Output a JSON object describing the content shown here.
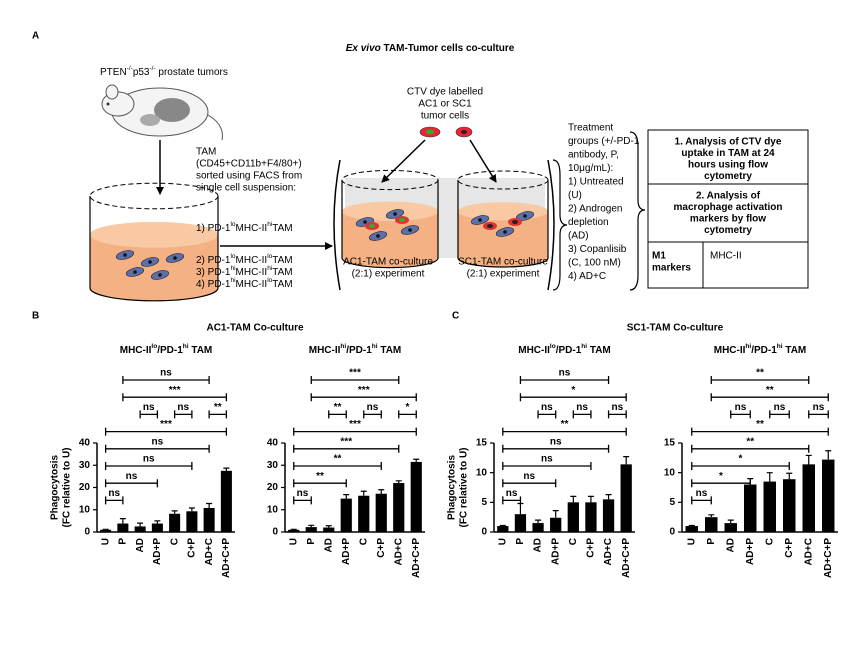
{
  "panel_labels": [
    "A",
    "B",
    "C"
  ],
  "title": [
    "Ex vivo",
    " TAM-Tumor cells co-culture"
  ],
  "tumor_label": [
    "PTEN",
    "-/-",
    "p53",
    "-/-",
    " prostate tumors"
  ],
  "tam_text": [
    "TAM",
    "(CD45+CD11b+F4/80+)",
    "sorted using FACS from",
    "single cell suspension:"
  ],
  "tam_populations": [
    [
      "1)  PD-1",
      "lo",
      "MHC-II",
      "hi",
      "TAM"
    ],
    [
      "2)  PD-1",
      "lo",
      "MHC-II",
      "lo",
      "TAM"
    ],
    [
      "3)  PD-1",
      "hi",
      "MHC-II",
      "hi",
      "TAM"
    ],
    [
      "4)  PD-1",
      "hi",
      "MHC-II",
      "lo",
      "TAM"
    ]
  ],
  "dye_label": [
    "CTV dye labelled",
    "AC1 or SC1",
    "tumor cells"
  ],
  "cocultures": [
    [
      "AC1-TAM co-culture",
      "(2:1) experiment"
    ],
    [
      "SC1-TAM co-culture",
      "(2:1) experiment"
    ]
  ],
  "treatment": [
    "Treatment",
    "groups (+/-PD-1",
    "antibody, P,",
    "10μg/mL):",
    "1)  Untreated",
    "     (U)",
    "2)  Androgen",
    "     depletion",
    "     (AD)",
    "3)  Copanlisib",
    "     (C, 100 nM)",
    "4)  AD+C"
  ],
  "analysis": {
    "box1": [
      "1. Analysis of CTV dye",
      "uptake in TAM at 24",
      "hours using flow",
      "cytometry"
    ],
    "box2": [
      "2. Analysis of",
      "macrophage activation",
      "markers by flow",
      "cytometry"
    ],
    "m1_label": [
      "M1",
      "markers"
    ],
    "m1_value": "MHC-II"
  },
  "panel_titles": [
    "AC1-TAM Co-culture",
    "SC1-TAM Co-culture"
  ],
  "chart_data": [
    {
      "type": "bar",
      "subtitle": [
        "MHC-II",
        "lo",
        "/PD-1",
        "hi",
        " TAM"
      ],
      "ylabel": [
        "Phagocytosis",
        "(FC relative to U)"
      ],
      "categories": [
        "U",
        "P",
        "AD",
        "AD+P",
        "C",
        "C+P",
        "AD+C",
        "AD+C+P"
      ],
      "values": [
        1,
        3.8,
        2.5,
        3.8,
        8.2,
        9.3,
        10.8,
        27.5
      ],
      "errors": [
        0.2,
        2.2,
        1.5,
        1.2,
        1.3,
        1.5,
        2,
        1.2
      ],
      "color": "#000000",
      "ylim": [
        0,
        40
      ],
      "yticks": [
        0,
        10,
        20,
        30,
        40
      ],
      "brackets": [
        [
          {
            "pair": [
              "P",
              "AD+C"
            ],
            "label": "ns"
          }
        ],
        [
          {
            "pair": [
              "P",
              "AD+C+P"
            ],
            "label": "***"
          }
        ],
        [
          {
            "pair": [
              "AD",
              "AD+P"
            ],
            "label": "ns"
          },
          {
            "pair": [
              "C",
              "C+P"
            ],
            "label": "ns"
          },
          {
            "pair": [
              "AD+C",
              "AD+C+P"
            ],
            "label": "**"
          }
        ],
        [
          {
            "pair": [
              "U",
              "AD+C+P"
            ],
            "label": "***"
          }
        ],
        [
          {
            "pair": [
              "U",
              "AD+C"
            ],
            "label": "ns"
          }
        ],
        [
          {
            "pair": [
              "U",
              "C+P"
            ],
            "label": "ns"
          }
        ],
        [
          {
            "pair": [
              "U",
              "AD+P"
            ],
            "label": "ns"
          }
        ],
        [
          {
            "pair": [
              "U",
              "P"
            ],
            "label": "ns"
          }
        ]
      ]
    },
    {
      "type": "bar",
      "subtitle": [
        "MHC-II",
        "hi",
        "/PD-1",
        "hi",
        " TAM"
      ],
      "categories": [
        "U",
        "P",
        "AD",
        "AD+P",
        "C",
        "C+P",
        "AD+C",
        "AD+C+P"
      ],
      "values": [
        1,
        2.2,
        2,
        15,
        16.3,
        17.2,
        22,
        31.5
      ],
      "errors": [
        0.2,
        0.8,
        0.8,
        1.8,
        2,
        1.8,
        1,
        1.2
      ],
      "color": "#000000",
      "ylim": [
        0,
        40
      ],
      "yticks": [
        0,
        10,
        20,
        30,
        40
      ],
      "brackets": [
        [
          {
            "pair": [
              "P",
              "AD+C"
            ],
            "label": "***"
          }
        ],
        [
          {
            "pair": [
              "P",
              "AD+C+P"
            ],
            "label": "***"
          }
        ],
        [
          {
            "pair": [
              "AD",
              "AD+P"
            ],
            "label": "**"
          },
          {
            "pair": [
              "C",
              "C+P"
            ],
            "label": "ns"
          },
          {
            "pair": [
              "AD+C",
              "AD+C+P"
            ],
            "label": "*"
          }
        ],
        [
          {
            "pair": [
              "U",
              "AD+C+P"
            ],
            "label": "***"
          }
        ],
        [
          {
            "pair": [
              "U",
              "AD+C"
            ],
            "label": "***"
          }
        ],
        [
          {
            "pair": [
              "U",
              "C+P"
            ],
            "label": "**"
          }
        ],
        [
          {
            "pair": [
              "U",
              "AD+P"
            ],
            "label": "**"
          }
        ],
        [
          {
            "pair": [
              "U",
              "P"
            ],
            "label": "ns"
          }
        ]
      ]
    },
    {
      "type": "bar",
      "subtitle": [
        "MHC-II",
        "lo",
        "/PD-1",
        "hi",
        " TAM"
      ],
      "ylabel": [
        "Phagocytosis",
        "(FC relative to U)"
      ],
      "categories": [
        "U",
        "P",
        "AD",
        "AD+P",
        "C",
        "C+P",
        "AD+C",
        "AD+C+P"
      ],
      "values": [
        1,
        3,
        1.5,
        2.4,
        5,
        5,
        5.5,
        11.4
      ],
      "errors": [
        0.1,
        1.8,
        0.5,
        1.2,
        1,
        1,
        0.8,
        1.3
      ],
      "color": "#000000",
      "ylim": [
        0,
        15
      ],
      "yticks": [
        0,
        5,
        10,
        15
      ],
      "brackets": [
        [
          {
            "pair": [
              "P",
              "AD+C"
            ],
            "label": "ns"
          }
        ],
        [
          {
            "pair": [
              "P",
              "AD+C+P"
            ],
            "label": "*"
          }
        ],
        [
          {
            "pair": [
              "AD",
              "AD+P"
            ],
            "label": "ns"
          },
          {
            "pair": [
              "C",
              "C+P"
            ],
            "label": "ns"
          },
          {
            "pair": [
              "AD+C",
              "AD+C+P"
            ],
            "label": "ns"
          }
        ],
        [
          {
            "pair": [
              "U",
              "AD+C+P"
            ],
            "label": "**"
          }
        ],
        [
          {
            "pair": [
              "U",
              "AD+C"
            ],
            "label": "ns"
          }
        ],
        [
          {
            "pair": [
              "U",
              "C+P"
            ],
            "label": "ns"
          }
        ],
        [
          {
            "pair": [
              "U",
              "AD+P"
            ],
            "label": "ns"
          }
        ],
        [
          {
            "pair": [
              "U",
              "P"
            ],
            "label": "ns"
          }
        ]
      ]
    },
    {
      "type": "bar",
      "subtitle": [
        "MHC-II",
        "hi",
        "/PD-1",
        "hi",
        " TAM"
      ],
      "categories": [
        "U",
        "P",
        "AD",
        "AD+P",
        "C",
        "C+P",
        "AD+C",
        "AD+C+P"
      ],
      "values": [
        1,
        2.5,
        1.5,
        8,
        8.5,
        8.9,
        11.4,
        12.2
      ],
      "errors": [
        0.1,
        0.4,
        0.5,
        1,
        1.5,
        1,
        1.5,
        1.5
      ],
      "color": "#000000",
      "ylim": [
        0,
        15
      ],
      "yticks": [
        0,
        5,
        10,
        15
      ],
      "brackets": [
        [
          {
            "pair": [
              "P",
              "AD+C"
            ],
            "label": "**"
          }
        ],
        [
          {
            "pair": [
              "P",
              "AD+C+P"
            ],
            "label": "**"
          }
        ],
        [
          {
            "pair": [
              "AD",
              "AD+P"
            ],
            "label": "ns"
          },
          {
            "pair": [
              "C",
              "C+P"
            ],
            "label": "ns"
          },
          {
            "pair": [
              "AD+C",
              "AD+C+P"
            ],
            "label": "ns"
          }
        ],
        [
          {
            "pair": [
              "U",
              "AD+C+P"
            ],
            "label": "**"
          }
        ],
        [
          {
            "pair": [
              "U",
              "AD+C"
            ],
            "label": "**"
          }
        ],
        [
          {
            "pair": [
              "U",
              "C+P"
            ],
            "label": "*"
          }
        ],
        [
          {
            "pair": [
              "U",
              "AD+P"
            ],
            "label": "*"
          }
        ],
        [
          {
            "pair": [
              "U",
              "P"
            ],
            "label": "ns"
          }
        ]
      ]
    }
  ]
}
